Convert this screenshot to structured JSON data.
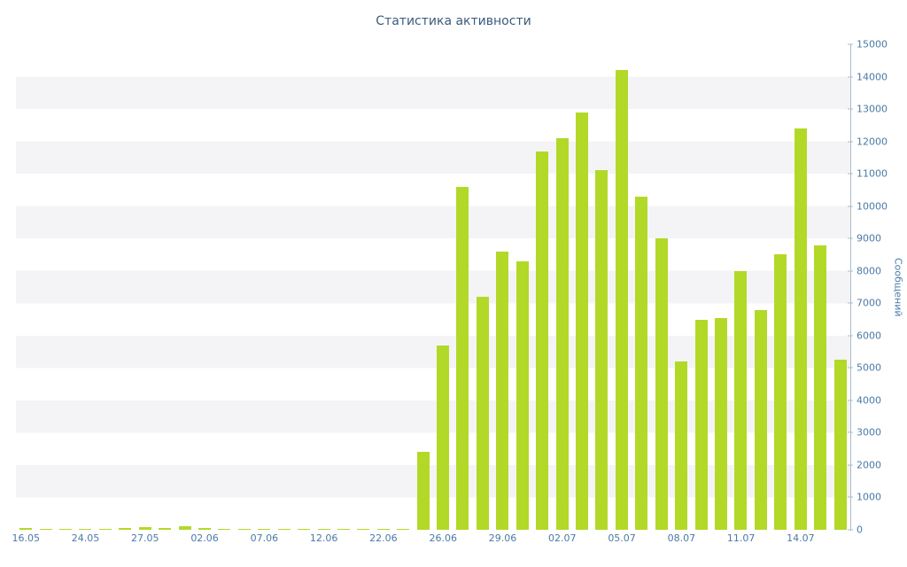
{
  "colors": {
    "bar": "#b2d928",
    "title": "#3c5a7d",
    "axis_text": "#4a7aa5",
    "axis_line": "#a9bccd",
    "stripe": "#f4f4f6",
    "background": "#ffffff"
  },
  "chart_data": {
    "type": "bar",
    "title": "Статистика активности",
    "xlabel": "",
    "ylabel": "Сообщений",
    "ylim": [
      0,
      15000
    ],
    "y_tick_step": 1000,
    "grid": "horizontal-stripes-every-1000",
    "legend": "none",
    "y_ticks": [
      0,
      1000,
      2000,
      3000,
      4000,
      5000,
      6000,
      7000,
      8000,
      9000,
      10000,
      11000,
      12000,
      13000,
      14000,
      15000
    ],
    "x_ticks": [
      {
        "index": 0,
        "label": "16.05"
      },
      {
        "index": 3,
        "label": "24.05"
      },
      {
        "index": 6,
        "label": "27.05"
      },
      {
        "index": 9,
        "label": "02.06"
      },
      {
        "index": 12,
        "label": "07.06"
      },
      {
        "index": 15,
        "label": "12.06"
      },
      {
        "index": 18,
        "label": "22.06"
      },
      {
        "index": 21,
        "label": "26.06"
      },
      {
        "index": 24,
        "label": "29.06"
      },
      {
        "index": 27,
        "label": "02.07"
      },
      {
        "index": 30,
        "label": "05.07"
      },
      {
        "index": 33,
        "label": "08.07"
      },
      {
        "index": 36,
        "label": "11.07"
      },
      {
        "index": 39,
        "label": "14.07"
      }
    ],
    "values": [
      50,
      30,
      20,
      40,
      30,
      60,
      80,
      50,
      100,
      60,
      40,
      30,
      30,
      20,
      20,
      30,
      20,
      20,
      30,
      40,
      2400,
      5700,
      10600,
      7200,
      8600,
      8300,
      11700,
      12100,
      12900,
      11100,
      14200,
      10300,
      9000,
      5200,
      6500,
      6550,
      8000,
      6800,
      8500,
      12400,
      8800,
      5250
    ]
  }
}
